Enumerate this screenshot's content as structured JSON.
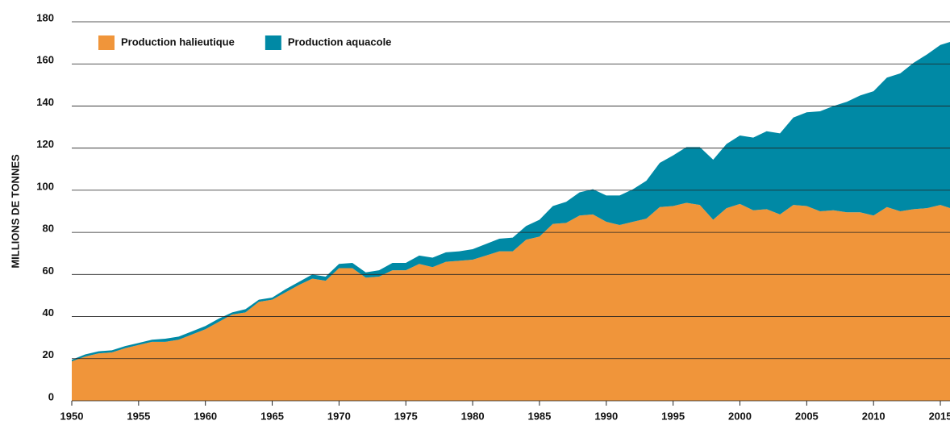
{
  "chart_data": {
    "type": "stacked_area",
    "y_label": "MILLIONS DE TONNES",
    "x": [
      1950,
      1951,
      1952,
      1953,
      1954,
      1955,
      1956,
      1957,
      1958,
      1959,
      1960,
      1961,
      1962,
      1963,
      1964,
      1965,
      1966,
      1967,
      1968,
      1969,
      1970,
      1971,
      1972,
      1973,
      1974,
      1975,
      1976,
      1977,
      1978,
      1979,
      1980,
      1981,
      1982,
      1983,
      1984,
      1985,
      1986,
      1987,
      1988,
      1989,
      1990,
      1991,
      1992,
      1993,
      1994,
      1995,
      1996,
      1997,
      1998,
      1999,
      2000,
      2001,
      2002,
      2003,
      2004,
      2005,
      2006,
      2007,
      2008,
      2009,
      2010,
      2011,
      2012,
      2013,
      2014,
      2015,
      2016
    ],
    "series": [
      {
        "name": "Production halieutique",
        "color": "#f0953a",
        "values": [
          18.7,
          21,
          22.5,
          23,
          25,
          26.5,
          28,
          28,
          29,
          31.5,
          34,
          37.5,
          41,
          42,
          47,
          48,
          51.5,
          55,
          58,
          57,
          63,
          63,
          58.5,
          59,
          62,
          62,
          65,
          63.5,
          66,
          66.5,
          67,
          69,
          71,
          71,
          76.5,
          78,
          84,
          84.5,
          88,
          88.5,
          85,
          83.5,
          85,
          86.5,
          92,
          92.5,
          94,
          93,
          86,
          91.5,
          93.5,
          90.5,
          91,
          88.5,
          93,
          92.5,
          90,
          90.5,
          89.5,
          89.5,
          88,
          92,
          90,
          91,
          91.5,
          93,
          91
        ]
      },
      {
        "name": "Production aquacole",
        "color": "#0089a5",
        "values": [
          0.8,
          1,
          1,
          1,
          1,
          1,
          1,
          1.5,
          1.5,
          1.5,
          1.5,
          1.5,
          1,
          1.5,
          1,
          1,
          1.5,
          1.5,
          2,
          2,
          2,
          2.5,
          2.5,
          3,
          3.5,
          3.5,
          4,
          4.5,
          4.5,
          4.5,
          5,
          5.5,
          6,
          6.5,
          6.5,
          8,
          8.5,
          10,
          11,
          12,
          12.5,
          14,
          15.5,
          18,
          21,
          24,
          26.5,
          27.5,
          28.5,
          30.5,
          32.5,
          34.5,
          37,
          38.5,
          41.5,
          44.5,
          47.5,
          49.5,
          52.5,
          55.5,
          59,
          61.5,
          65.5,
          69.5,
          73,
          76,
          80
        ]
      }
    ],
    "xlim": [
      1950,
      2016
    ],
    "xticks": [
      1950,
      1955,
      1960,
      1965,
      1970,
      1975,
      1980,
      1985,
      1990,
      1995,
      2000,
      2005,
      2010,
      2015
    ],
    "ylim": [
      0,
      180
    ],
    "yticks": [
      0,
      20,
      40,
      60,
      80,
      100,
      120,
      140,
      160,
      180
    ],
    "grid": true,
    "legend": "top-left"
  }
}
